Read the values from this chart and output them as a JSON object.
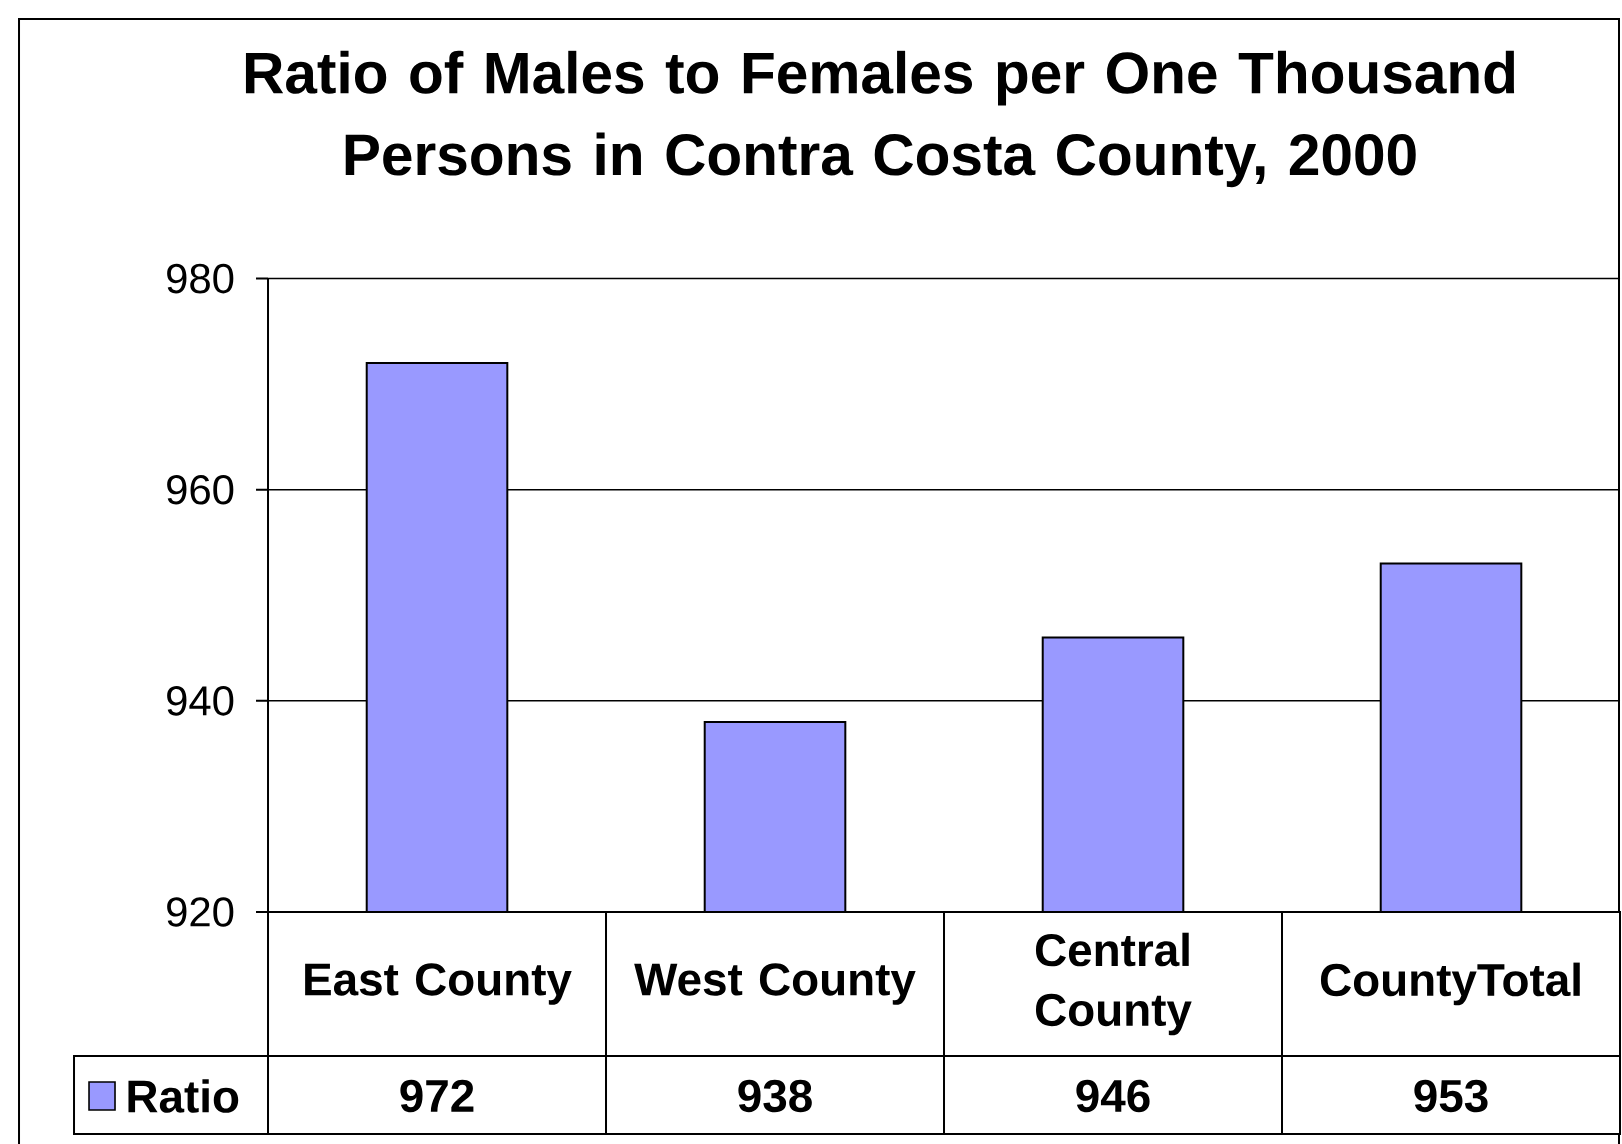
{
  "chart_data": {
    "type": "bar",
    "title": "Ratio of Males to Females per One Thousand Persons in Contra Costa County, 2000",
    "categories": [
      "East County",
      "West County",
      "Central County",
      "CountyTotal"
    ],
    "series": [
      {
        "name": "Ratio",
        "color": "#9999ff",
        "values": [
          972,
          938,
          946,
          953
        ]
      }
    ],
    "ylim": [
      920,
      980
    ],
    "yticks": [
      920,
      940,
      960,
      980
    ],
    "grid": "y",
    "legend": "bottom left",
    "data_labels": true
  }
}
